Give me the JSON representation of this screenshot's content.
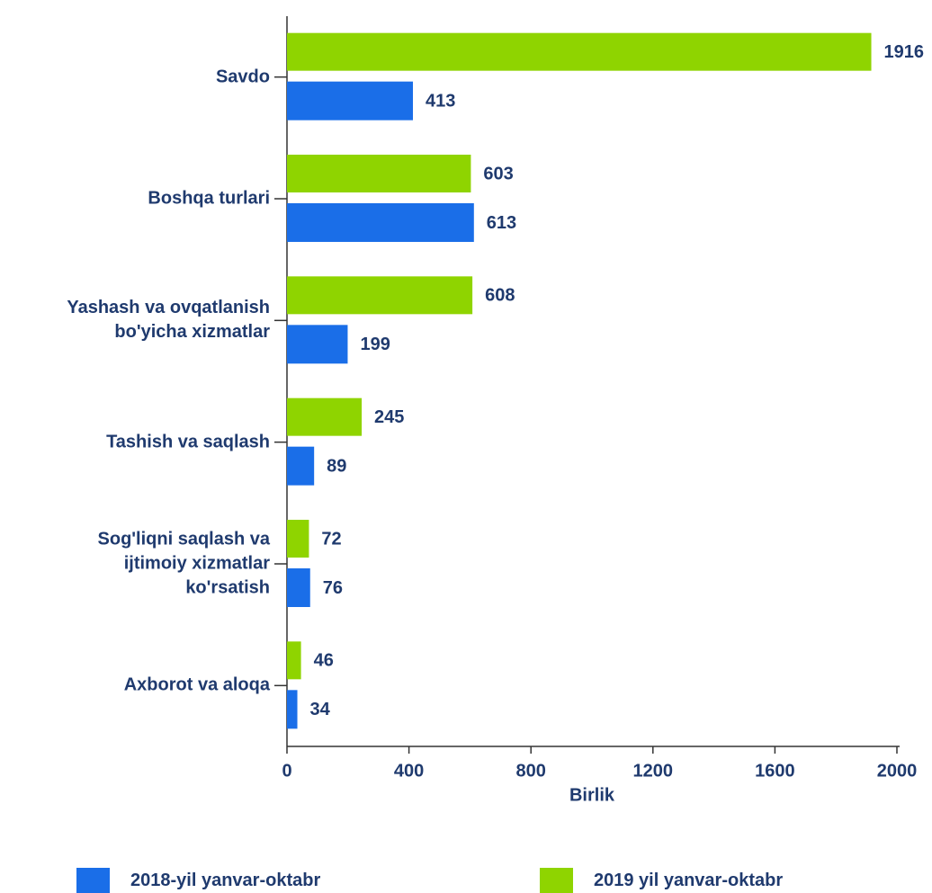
{
  "chart_data": {
    "type": "barh",
    "categories": [
      "Savdo",
      "Boshqa turlari",
      "Yashash va ovqatlanish\nbo'yicha xizmatlar",
      "Tashish va saqlash",
      "Sog'liqni saqlash va\nijtimoiy xizmatlar\nko'rsatish",
      "Axborot va aloqa"
    ],
    "series": [
      {
        "name": "2018-yil yanvar-oktabr",
        "color": "#1a6ee8",
        "values": [
          413,
          613,
          199,
          89,
          76,
          34
        ]
      },
      {
        "name": "2019 yil yanvar-oktabr",
        "color": "#8fd400",
        "values": [
          1916,
          603,
          608,
          245,
          72,
          46
        ]
      }
    ],
    "xlabel": "Birlik",
    "xlim": [
      0,
      2000
    ],
    "xticks": [
      0,
      400,
      800,
      1200,
      1600,
      2000
    ],
    "grid": false,
    "legend": "bottom"
  }
}
